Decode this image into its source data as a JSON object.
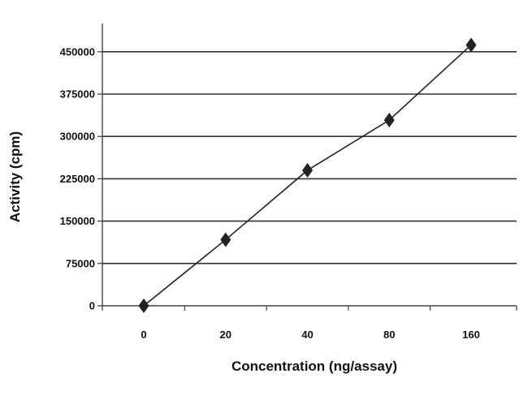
{
  "chart_data": {
    "type": "line",
    "title": "",
    "xlabel": "Concentration (ng/assay)",
    "ylabel": "Activity (cpm)",
    "categories": [
      "0",
      "20",
      "40",
      "80",
      "160"
    ],
    "series": [
      {
        "values": [
          0,
          117000,
          240000,
          329000,
          462000
        ]
      }
    ],
    "ylim": [
      0,
      500000
    ],
    "yticks": [
      0,
      75000,
      150000,
      225000,
      300000,
      375000,
      450000
    ],
    "ytick_labels": [
      "0",
      "75000",
      "150000",
      "225000",
      "300000",
      "375000",
      "450000"
    ],
    "grid": true,
    "marker": "diamond",
    "legend": "none",
    "colors": {
      "line": "#222222",
      "grid": "#333333",
      "marker": "#222222"
    }
  }
}
